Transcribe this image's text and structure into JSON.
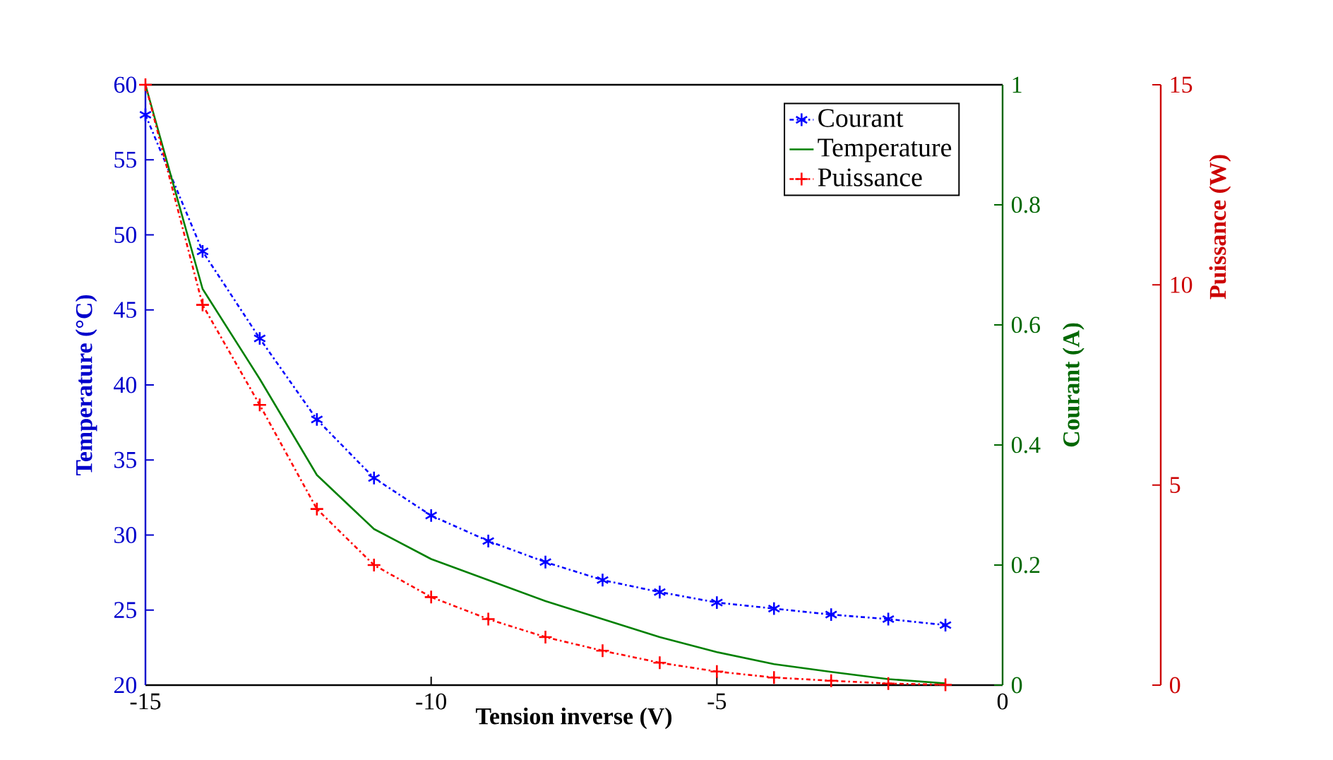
{
  "chart_data": {
    "type": "line",
    "xlabel": "Tension inverse (V)",
    "ylabel": "Temperature (°C)",
    "y2label": "Courant (A)",
    "y3label": "Puissance (W)",
    "x": [
      -15,
      -14,
      -13,
      -12,
      -11,
      -10,
      -9,
      -8,
      -7,
      -6,
      -5,
      -4,
      -3,
      -2,
      -1
    ],
    "xlim": [
      -15,
      0
    ],
    "xticks": [
      -15,
      -10,
      -5,
      0
    ],
    "ylim": [
      20,
      60
    ],
    "yticks": [
      20,
      25,
      30,
      35,
      40,
      45,
      50,
      55,
      60
    ],
    "y2lim": [
      0,
      1
    ],
    "y2ticks": [
      0,
      0.2,
      0.4,
      0.6,
      0.8,
      1
    ],
    "y3lim": [
      0,
      15
    ],
    "y3ticks": [
      0,
      5,
      10,
      15
    ],
    "legend": "top right",
    "grid": false,
    "series": [
      {
        "name": "Courant",
        "color": "#0000ff",
        "axis": "y",
        "marker": "cross",
        "line_style": "dashdot",
        "values": [
          58,
          48.9,
          43.1,
          37.7,
          33.8,
          31.3,
          29.6,
          28.2,
          27.0,
          26.2,
          25.5,
          25.1,
          24.7,
          24.4,
          24.0
        ]
      },
      {
        "name": "Temperature",
        "color": "#008000",
        "axis": "y2",
        "marker": "none",
        "line_style": "solid",
        "values": [
          1.0,
          0.66,
          0.51,
          0.35,
          0.26,
          0.21,
          0.175,
          0.14,
          0.11,
          0.08,
          0.055,
          0.035,
          0.022,
          0.01,
          0.003
        ]
      },
      {
        "name": "Puissance",
        "color": "#ff0000",
        "axis": "y3",
        "marker": "plus",
        "line_style": "dashdot",
        "values": [
          15,
          9.5,
          7.0,
          4.4,
          3.0,
          2.2,
          1.65,
          1.2,
          0.86,
          0.56,
          0.34,
          0.19,
          0.11,
          0.04,
          0.01
        ]
      }
    ]
  }
}
